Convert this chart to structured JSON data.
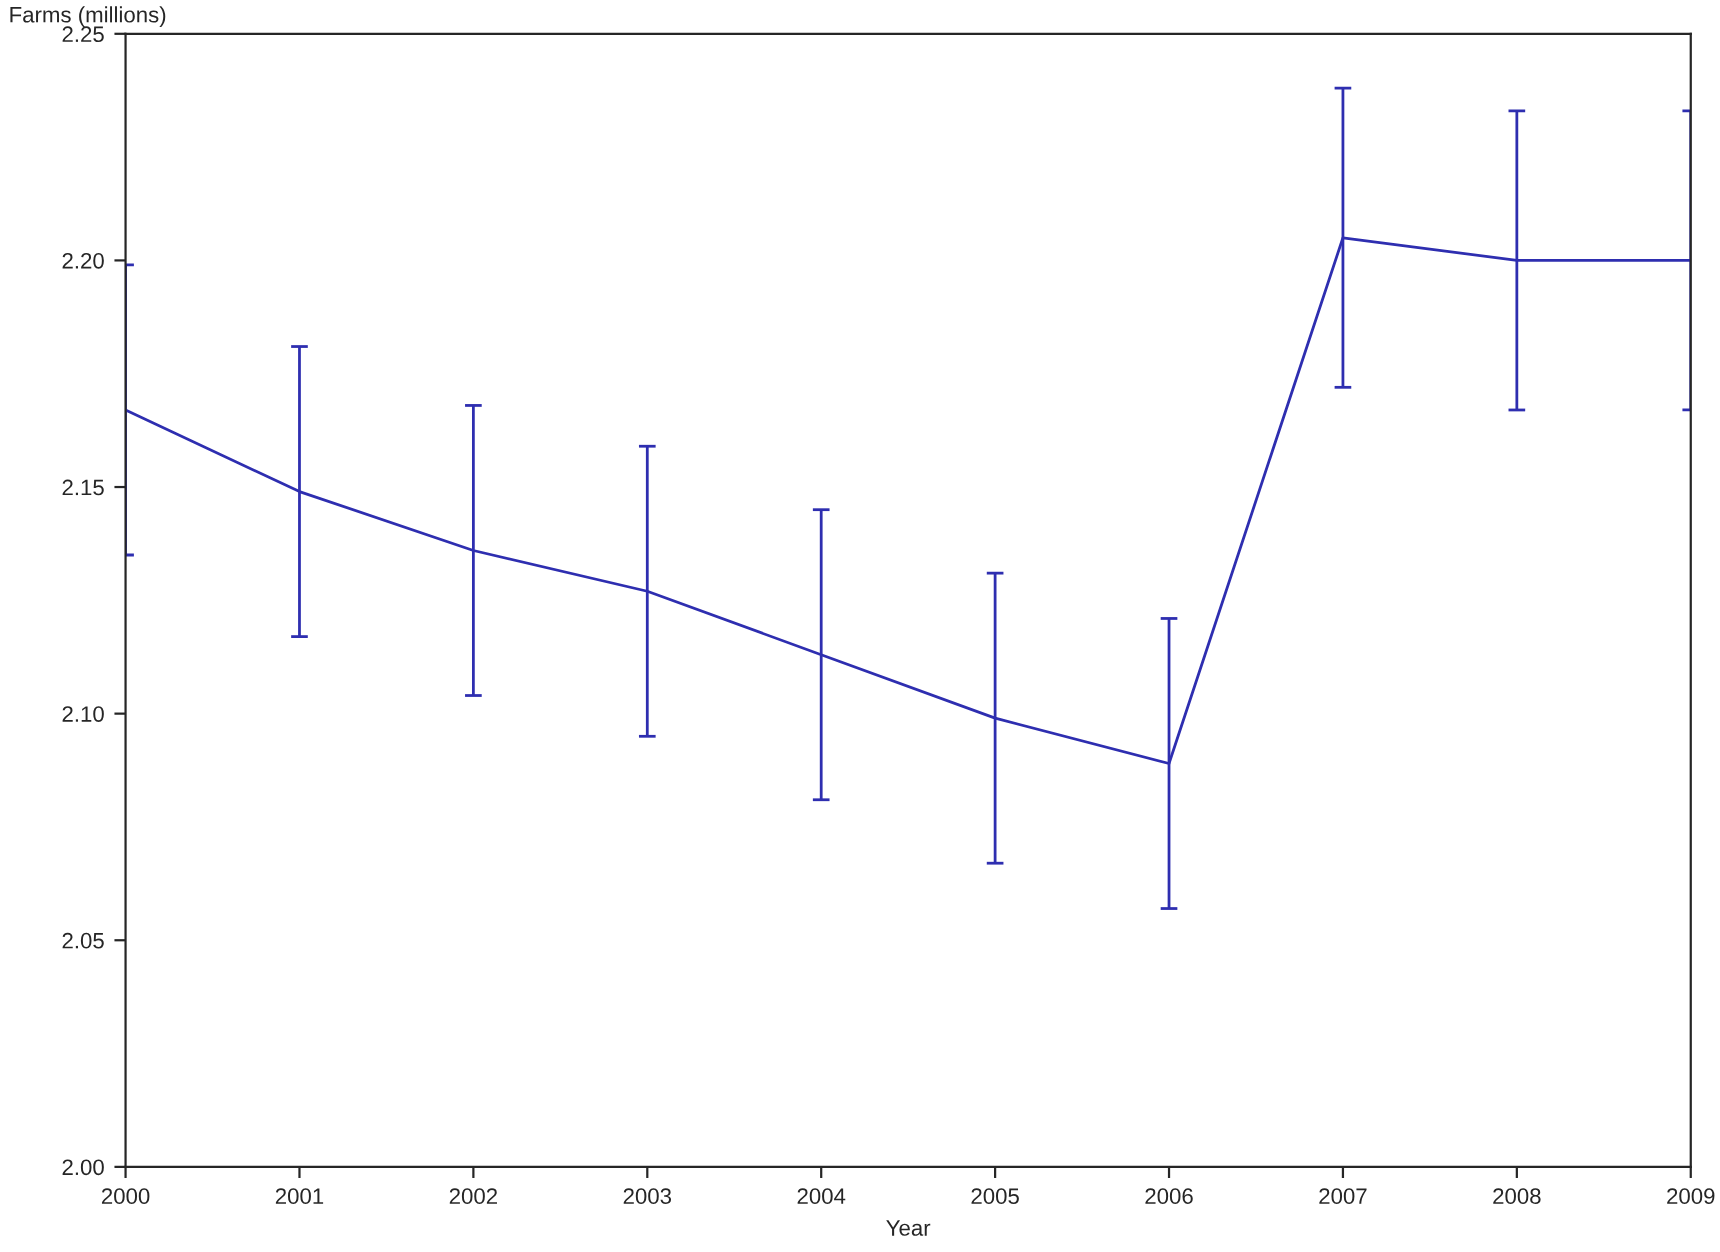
{
  "chart_data": {
    "type": "line",
    "xlabel": "Year",
    "ylabel": "Farms (millions)",
    "x": [
      2000,
      2001,
      2002,
      2003,
      2004,
      2005,
      2006,
      2007,
      2008,
      2009
    ],
    "series": [
      {
        "color": "#2e2eb0",
        "values": [
          2.167,
          2.149,
          2.136,
          2.127,
          2.113,
          2.099,
          2.089,
          2.205,
          2.2,
          2.2
        ],
        "errors": [
          0.032,
          0.032,
          0.032,
          0.032,
          0.032,
          0.032,
          0.032,
          0.033,
          0.033,
          0.033
        ]
      }
    ],
    "xlim": [
      2000,
      2009
    ],
    "xticks": [
      2000,
      2001,
      2002,
      2003,
      2004,
      2005,
      2006,
      2007,
      2008,
      2009
    ],
    "ylim": [
      2.0,
      2.25
    ],
    "yticks": [
      {
        "value": 2.0,
        "label": "2.00"
      },
      {
        "value": 2.05,
        "label": "2.05"
      },
      {
        "value": 2.1,
        "label": "2.10"
      },
      {
        "value": 2.15,
        "label": "2.15"
      },
      {
        "value": 2.2,
        "label": "2.20"
      },
      {
        "value": 2.25,
        "label": "2.25"
      }
    ],
    "grid": false,
    "marker": "none",
    "line_style": "solid"
  }
}
